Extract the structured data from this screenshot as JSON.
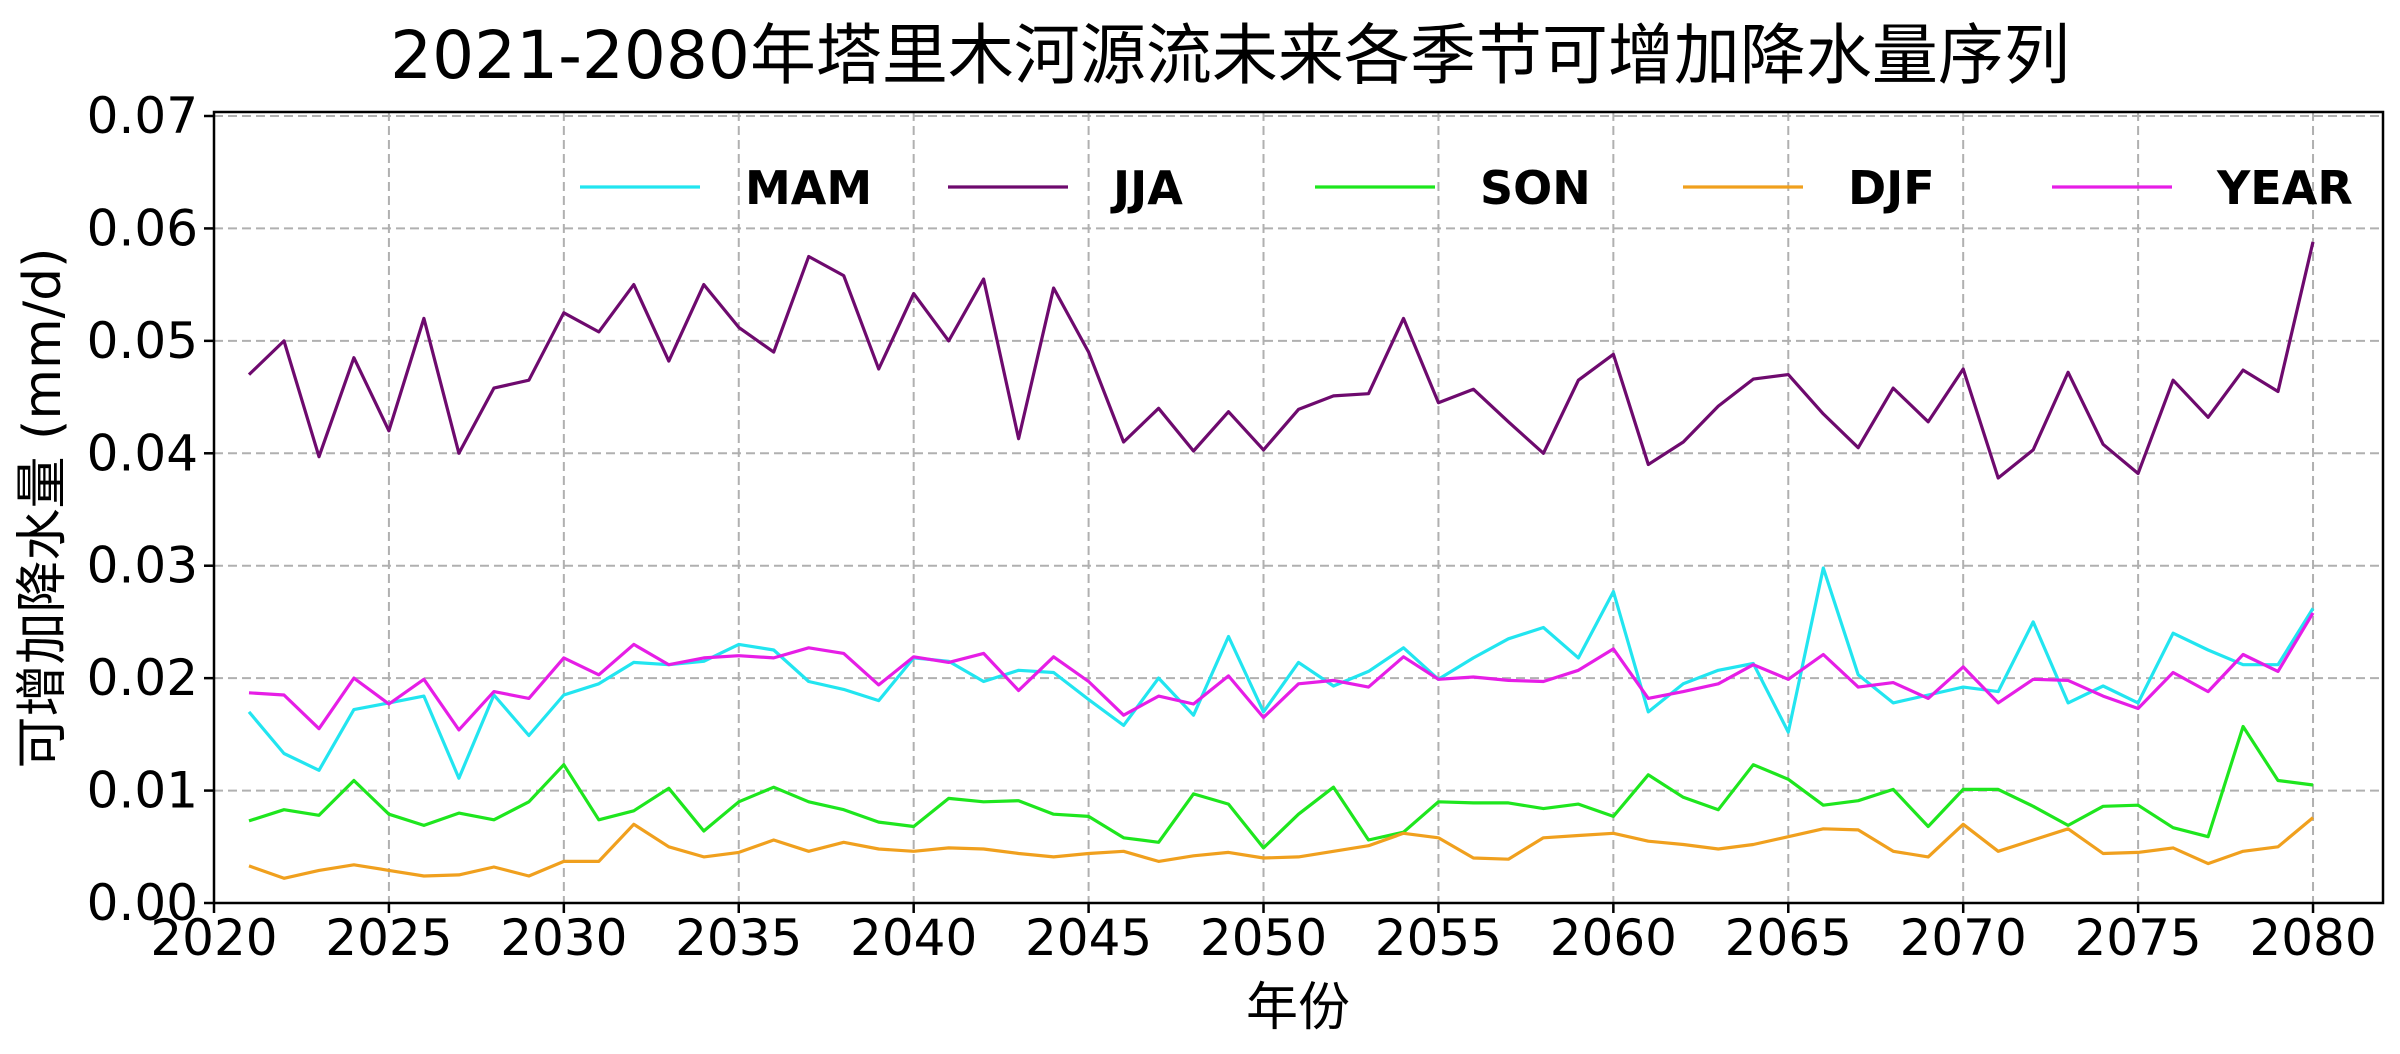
{
  "chart_data": {
    "type": "line",
    "title": "2021-2080年塔里木河源流未来各季节可增加降水量序列",
    "xlabel": "年份",
    "ylabel": "可增加降水量 (mm/d)",
    "xlim": [
      2020,
      2082
    ],
    "ylim": [
      0,
      0.07
    ],
    "xticks": [
      2020,
      2025,
      2030,
      2035,
      2040,
      2045,
      2050,
      2055,
      2060,
      2065,
      2070,
      2075,
      2080
    ],
    "yticks": [
      "0.00",
      "0.01",
      "0.02",
      "0.03",
      "0.04",
      "0.05",
      "0.06",
      "0.07"
    ],
    "grid": true,
    "legend_placement": "top",
    "x_start": 2021,
    "series": [
      {
        "name": "MAM",
        "color": "#22e5f0",
        "values": [
          0.017,
          0.0133,
          0.0118,
          0.0172,
          0.0178,
          0.0184,
          0.0111,
          0.0185,
          0.0149,
          0.0185,
          0.0195,
          0.0214,
          0.0212,
          0.0215,
          0.023,
          0.0225,
          0.0197,
          0.019,
          0.018,
          0.0218,
          0.0215,
          0.0197,
          0.0207,
          0.0205,
          0.0181,
          0.0158,
          0.02,
          0.0167,
          0.0237,
          0.017,
          0.0214,
          0.0193,
          0.0206,
          0.0227,
          0.0199,
          0.0218,
          0.0235,
          0.0245,
          0.0218,
          0.0277,
          0.017,
          0.0195,
          0.0207,
          0.0213,
          0.0152,
          0.0298,
          0.0203,
          0.0178,
          0.0185,
          0.0192,
          0.0188,
          0.025,
          0.0178,
          0.0193,
          0.0178,
          0.024,
          0.0225,
          0.0212,
          0.0212,
          0.0262
        ]
      },
      {
        "name": "JJA",
        "color": "#6e0a6e",
        "values": [
          0.047,
          0.05,
          0.0397,
          0.0485,
          0.042,
          0.052,
          0.04,
          0.0458,
          0.0465,
          0.0525,
          0.0508,
          0.055,
          0.0482,
          0.055,
          0.0512,
          0.049,
          0.0575,
          0.0558,
          0.0475,
          0.0542,
          0.05,
          0.0555,
          0.0413,
          0.0547,
          0.049,
          0.041,
          0.044,
          0.0402,
          0.0437,
          0.0403,
          0.0439,
          0.0451,
          0.0453,
          0.052,
          0.0445,
          0.0457,
          0.0428,
          0.04,
          0.0465,
          0.0488,
          0.039,
          0.041,
          0.0442,
          0.0466,
          0.047,
          0.0435,
          0.0405,
          0.0458,
          0.0428,
          0.0475,
          0.0378,
          0.0403,
          0.0472,
          0.0408,
          0.0382,
          0.0465,
          0.0432,
          0.0474,
          0.0455,
          0.0588
        ]
      },
      {
        "name": "SON",
        "color": "#1ee61e",
        "values": [
          0.0073,
          0.0083,
          0.0078,
          0.0109,
          0.0079,
          0.0069,
          0.008,
          0.0074,
          0.009,
          0.0123,
          0.0074,
          0.0082,
          0.0102,
          0.0064,
          0.009,
          0.0103,
          0.009,
          0.0083,
          0.0072,
          0.0068,
          0.0093,
          0.009,
          0.0091,
          0.0079,
          0.0077,
          0.0058,
          0.0054,
          0.0097,
          0.0088,
          0.0049,
          0.0079,
          0.0103,
          0.0056,
          0.0063,
          0.009,
          0.0089,
          0.0089,
          0.0084,
          0.0088,
          0.0077,
          0.0114,
          0.0094,
          0.0083,
          0.0123,
          0.011,
          0.0087,
          0.0091,
          0.0101,
          0.0068,
          0.0101,
          0.0101,
          0.0086,
          0.0069,
          0.0086,
          0.0087,
          0.0067,
          0.0059,
          0.0157,
          0.0109,
          0.0105
        ]
      },
      {
        "name": "DJF",
        "color": "#f0a01e",
        "values": [
          0.0033,
          0.0022,
          0.0029,
          0.0034,
          0.0029,
          0.0024,
          0.0025,
          0.0032,
          0.0024,
          0.0037,
          0.0037,
          0.007,
          0.005,
          0.0041,
          0.0045,
          0.0056,
          0.0046,
          0.0054,
          0.0048,
          0.0046,
          0.0049,
          0.0048,
          0.0044,
          0.0041,
          0.0044,
          0.0046,
          0.0037,
          0.0042,
          0.0045,
          0.004,
          0.0041,
          0.0046,
          0.0051,
          0.0062,
          0.0058,
          0.004,
          0.0039,
          0.0058,
          0.006,
          0.0062,
          0.0055,
          0.0052,
          0.0048,
          0.0052,
          0.0059,
          0.0066,
          0.0065,
          0.0046,
          0.0041,
          0.007,
          0.0046,
          0.0056,
          0.0066,
          0.0044,
          0.0045,
          0.0049,
          0.0035,
          0.0046,
          0.005,
          0.0076
        ]
      },
      {
        "name": "YEAR",
        "color": "#e61ee6",
        "values": [
          0.0187,
          0.0185,
          0.0155,
          0.02,
          0.0177,
          0.0199,
          0.0154,
          0.0188,
          0.0182,
          0.0218,
          0.0203,
          0.023,
          0.0212,
          0.0218,
          0.022,
          0.0218,
          0.0227,
          0.0222,
          0.0194,
          0.0219,
          0.0214,
          0.0222,
          0.0189,
          0.0219,
          0.0197,
          0.0167,
          0.0184,
          0.0177,
          0.0202,
          0.0165,
          0.0195,
          0.0198,
          0.0192,
          0.0219,
          0.0199,
          0.0201,
          0.0198,
          0.0197,
          0.0207,
          0.0226,
          0.0182,
          0.0188,
          0.0195,
          0.0212,
          0.0199,
          0.0221,
          0.0192,
          0.0196,
          0.0182,
          0.021,
          0.0178,
          0.0199,
          0.0198,
          0.0184,
          0.0173,
          0.0205,
          0.0188,
          0.0221,
          0.0206,
          0.0258
        ]
      }
    ]
  }
}
